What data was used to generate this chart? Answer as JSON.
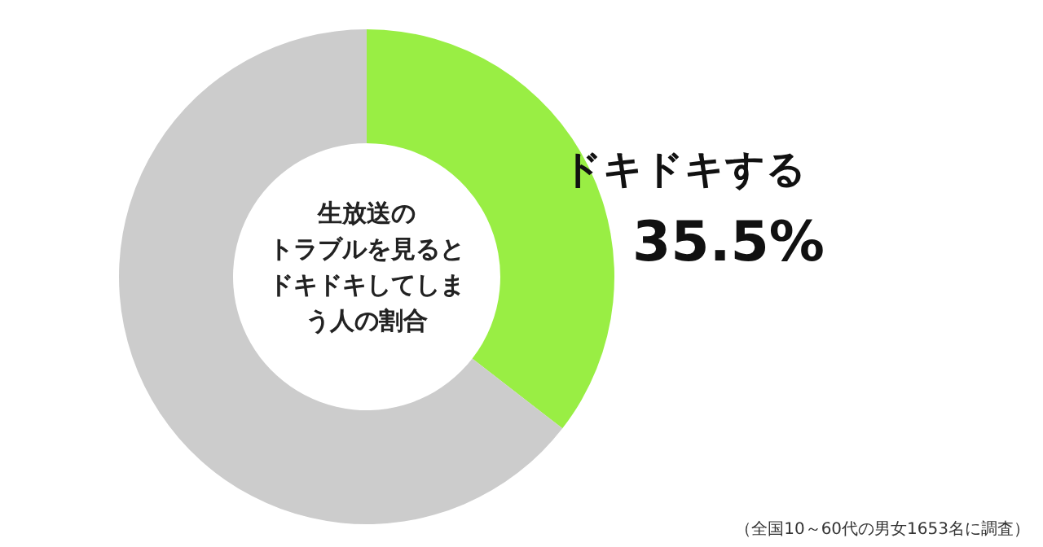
{
  "chart_data": {
    "type": "donut",
    "title": "生放送のトラブルを見るとドキドキしてしまう人の割合",
    "categories": [
      "ドキドキする",
      null
    ],
    "values": [
      35.5,
      64.5
    ],
    "colors": [
      "#99ee44",
      "#cccccc"
    ],
    "value_labels": [
      "35.5%",
      null
    ],
    "annotations": [
      "（全国10～60代の男女1653名に調査）"
    ]
  }
}
